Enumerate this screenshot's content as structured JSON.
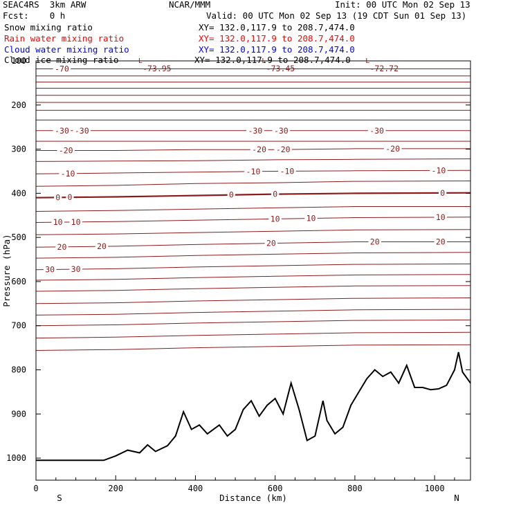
{
  "header": {
    "model": "SEAC4RS  3km ARW",
    "org": "NCAR/MMM",
    "init": "Init: 00 UTC Mon 02 Sep 13",
    "fcst": "Fcst:    0 h",
    "valid": "Valid: 00 UTC Mon 02 Sep 13 (19 CDT Sun 01 Sep 13)"
  },
  "legend": [
    {
      "label": "Snow mixing ratio",
      "xy": "XY= 132.0,117.9 to 208.7,474.0",
      "color": "#000000"
    },
    {
      "label": "Rain water mixing ratio",
      "xy": "XY= 132.0,117.9 to 208.7,474.0",
      "color": "#ff0000"
    },
    {
      "label": "Cloud water mixing ratio",
      "xy": "XY= 132.0,117.9 to 208.7,474.0",
      "color": "#0000ff"
    },
    {
      "label": "Cloud ice mixing ratio",
      "xy": "XY= 132.0,117.9 to 208.7,474.0",
      "color": "#000000"
    }
  ],
  "chart_data": {
    "type": "line",
    "title": "",
    "xlabel": "Distance (km)",
    "ylabel": "Pressure (hPa)",
    "xlim": [
      0,
      1090
    ],
    "ylim": [
      1050,
      100
    ],
    "x_ticks": [
      0,
      200,
      400,
      600,
      800,
      1000
    ],
    "y_ticks": [
      200,
      300,
      400,
      500,
      600,
      700,
      800,
      900,
      1000
    ],
    "y_tick_100_label": "100",
    "direction_labels": {
      "left": "S",
      "right": "N"
    },
    "isotherm_color": "#8b1a1a",
    "isotherm_interval_C": 5,
    "extrema": [
      {
        "text": "L",
        "x": 300
      },
      {
        "text": "-73.95",
        "x": 300
      },
      {
        "text": "L",
        "x": 610
      },
      {
        "text": "-73.45",
        "x": 610
      },
      {
        "text": "L",
        "x": 870
      },
      {
        "text": "-72.72",
        "x": 870
      }
    ],
    "isotherms": [
      {
        "t": -70,
        "p": [
          [
            0,
            118
          ],
          [
            1090,
            118
          ]
        ]
      },
      {
        "t": -65,
        "p": [
          [
            0,
            134
          ],
          [
            1090,
            134
          ]
        ]
      },
      {
        "t": -60,
        "p": [
          [
            0,
            148
          ],
          [
            1090,
            148
          ]
        ]
      },
      {
        "t": -55,
        "p": [
          [
            0,
            162
          ],
          [
            1090,
            162
          ]
        ]
      },
      {
        "t": -50,
        "p": [
          [
            0,
            178
          ],
          [
            1090,
            178
          ]
        ]
      },
      {
        "t": -45,
        "p": [
          [
            0,
            194
          ],
          [
            1090,
            194
          ]
        ]
      },
      {
        "t": -40,
        "p": [
          [
            0,
            212
          ],
          [
            1090,
            212
          ]
        ]
      },
      {
        "t": -35,
        "p": [
          [
            0,
            234
          ],
          [
            1090,
            234
          ]
        ]
      },
      {
        "t": -30,
        "p": [
          [
            0,
            258
          ],
          [
            1090,
            258
          ]
        ]
      },
      {
        "t": -25,
        "p": [
          [
            0,
            282
          ],
          [
            1090,
            282
          ]
        ]
      },
      {
        "t": -20,
        "p": [
          [
            0,
            303
          ],
          [
            200,
            303
          ],
          [
            400,
            301
          ],
          [
            600,
            301
          ],
          [
            800,
            299
          ],
          [
            1090,
            299
          ]
        ]
      },
      {
        "t": -15,
        "p": [
          [
            0,
            328
          ],
          [
            200,
            327
          ],
          [
            400,
            326
          ],
          [
            600,
            324
          ],
          [
            800,
            323
          ],
          [
            1090,
            322
          ]
        ]
      },
      {
        "t": -10,
        "p": [
          [
            0,
            356
          ],
          [
            200,
            354
          ],
          [
            400,
            352
          ],
          [
            600,
            350
          ],
          [
            800,
            349
          ],
          [
            1090,
            348
          ]
        ]
      },
      {
        "t": -5,
        "p": [
          [
            0,
            384
          ],
          [
            200,
            382
          ],
          [
            400,
            378
          ],
          [
            600,
            376
          ],
          [
            800,
            373
          ],
          [
            1090,
            372
          ]
        ]
      },
      {
        "t": 0,
        "p": [
          [
            0,
            410
          ],
          [
            200,
            408
          ],
          [
            400,
            405
          ],
          [
            600,
            402
          ],
          [
            800,
            400
          ],
          [
            1090,
            399
          ]
        ]
      },
      {
        "t": 5,
        "p": [
          [
            0,
            441
          ],
          [
            200,
            439
          ],
          [
            400,
            436
          ],
          [
            600,
            433
          ],
          [
            800,
            430
          ],
          [
            1090,
            430
          ]
        ]
      },
      {
        "t": 10,
        "p": [
          [
            0,
            466
          ],
          [
            200,
            464
          ],
          [
            400,
            461
          ],
          [
            600,
            458
          ],
          [
            800,
            455
          ],
          [
            1090,
            454
          ]
        ]
      },
      {
        "t": 15,
        "p": [
          [
            0,
            494
          ],
          [
            200,
            492
          ],
          [
            400,
            489
          ],
          [
            600,
            486
          ],
          [
            800,
            483
          ],
          [
            1090,
            482
          ]
        ]
      },
      {
        "t": 20,
        "p": [
          [
            0,
            522
          ],
          [
            200,
            520
          ],
          [
            400,
            516
          ],
          [
            600,
            513
          ],
          [
            800,
            510
          ],
          [
            1090,
            510
          ]
        ]
      },
      {
        "t": 25,
        "p": [
          [
            0,
            547
          ],
          [
            200,
            545
          ],
          [
            400,
            541
          ],
          [
            600,
            538
          ],
          [
            800,
            535
          ],
          [
            1090,
            534
          ]
        ]
      },
      {
        "t": 30,
        "p": [
          [
            0,
            573
          ],
          [
            200,
            571
          ],
          [
            400,
            567
          ],
          [
            600,
            564
          ],
          [
            800,
            561
          ],
          [
            1090,
            560
          ]
        ]
      },
      {
        "t": 35,
        "p": [
          [
            0,
            597
          ],
          [
            200,
            595
          ],
          [
            400,
            591
          ],
          [
            600,
            588
          ],
          [
            800,
            585
          ],
          [
            1090,
            584
          ]
        ]
      },
      {
        "t": 40,
        "p": [
          [
            0,
            622
          ],
          [
            200,
            620
          ],
          [
            400,
            616
          ],
          [
            600,
            613
          ],
          [
            800,
            610
          ],
          [
            1090,
            609
          ]
        ]
      },
      {
        "t": 45,
        "p": [
          [
            0,
            650
          ],
          [
            200,
            648
          ],
          [
            400,
            644
          ],
          [
            600,
            641
          ],
          [
            800,
            638
          ],
          [
            1090,
            637
          ]
        ]
      },
      {
        "t": 50,
        "p": [
          [
            0,
            676
          ],
          [
            200,
            674
          ],
          [
            400,
            670
          ],
          [
            600,
            667
          ],
          [
            800,
            664
          ],
          [
            1090,
            663
          ]
        ]
      },
      {
        "t": 55,
        "p": [
          [
            0,
            700
          ],
          [
            200,
            698
          ],
          [
            400,
            694
          ],
          [
            600,
            691
          ],
          [
            800,
            688
          ],
          [
            1090,
            687
          ]
        ]
      },
      {
        "t": 60,
        "p": [
          [
            0,
            728
          ],
          [
            200,
            726
          ],
          [
            400,
            722
          ],
          [
            600,
            719
          ],
          [
            800,
            716
          ],
          [
            1090,
            715
          ]
        ]
      },
      {
        "t": 65,
        "p": [
          [
            0,
            756
          ],
          [
            200,
            754
          ],
          [
            400,
            750
          ],
          [
            600,
            747
          ],
          [
            800,
            744
          ],
          [
            1090,
            743
          ]
        ]
      }
    ],
    "terrain": [
      [
        0,
        1005
      ],
      [
        170,
        1005
      ],
      [
        200,
        995
      ],
      [
        230,
        982
      ],
      [
        260,
        988
      ],
      [
        280,
        970
      ],
      [
        300,
        985
      ],
      [
        330,
        972
      ],
      [
        350,
        950
      ],
      [
        370,
        895
      ],
      [
        390,
        935
      ],
      [
        410,
        925
      ],
      [
        430,
        945
      ],
      [
        460,
        925
      ],
      [
        480,
        950
      ],
      [
        500,
        935
      ],
      [
        520,
        890
      ],
      [
        540,
        870
      ],
      [
        560,
        905
      ],
      [
        580,
        880
      ],
      [
        600,
        865
      ],
      [
        620,
        900
      ],
      [
        640,
        830
      ],
      [
        660,
        890
      ],
      [
        680,
        960
      ],
      [
        700,
        950
      ],
      [
        720,
        870
      ],
      [
        730,
        915
      ],
      [
        750,
        945
      ],
      [
        770,
        930
      ],
      [
        790,
        880
      ],
      [
        810,
        850
      ],
      [
        830,
        820
      ],
      [
        850,
        800
      ],
      [
        870,
        815
      ],
      [
        890,
        805
      ],
      [
        910,
        830
      ],
      [
        930,
        790
      ],
      [
        950,
        840
      ],
      [
        970,
        840
      ],
      [
        990,
        845
      ],
      [
        1010,
        843
      ],
      [
        1030,
        835
      ],
      [
        1050,
        800
      ],
      [
        1060,
        760
      ],
      [
        1070,
        805
      ],
      [
        1090,
        830
      ]
    ],
    "isotherm_labels": [
      {
        "text": "-70",
        "t": -70,
        "x": 65
      },
      {
        "text": "-30",
        "t": -30,
        "x": 65
      },
      {
        "text": "-30",
        "t": -30,
        "x": 115
      },
      {
        "text": "-30",
        "t": -30,
        "x": 550
      },
      {
        "text": "-30",
        "t": -30,
        "x": 615
      },
      {
        "text": "-30",
        "t": -30,
        "x": 855
      },
      {
        "text": "-20",
        "t": -20,
        "x": 75
      },
      {
        "text": "-20",
        "t": -20,
        "x": 560
      },
      {
        "text": "-20",
        "t": -20,
        "x": 620
      },
      {
        "text": "-20",
        "t": -20,
        "x": 895
      },
      {
        "text": "-10",
        "t": -10,
        "x": 80
      },
      {
        "text": "-10",
        "t": -10,
        "x": 545
      },
      {
        "text": "-10",
        "t": -10,
        "x": 630
      },
      {
        "text": "-10",
        "t": -10,
        "x": 1010
      },
      {
        "text": "0",
        "t": 0,
        "x": 55
      },
      {
        "text": "0",
        "t": 0,
        "x": 85
      },
      {
        "text": "0",
        "t": 0,
        "x": 490
      },
      {
        "text": "0",
        "t": 0,
        "x": 600
      },
      {
        "text": "0",
        "t": 0,
        "x": 1020
      },
      {
        "text": "10",
        "t": 10,
        "x": 55
      },
      {
        "text": "10",
        "t": 10,
        "x": 100
      },
      {
        "text": "10",
        "t": 10,
        "x": 600
      },
      {
        "text": "10",
        "t": 10,
        "x": 690
      },
      {
        "text": "10",
        "t": 10,
        "x": 1015
      },
      {
        "text": "20",
        "t": 20,
        "x": 65
      },
      {
        "text": "20",
        "t": 20,
        "x": 165
      },
      {
        "text": "20",
        "t": 20,
        "x": 590
      },
      {
        "text": "20",
        "t": 20,
        "x": 850
      },
      {
        "text": "20",
        "t": 20,
        "x": 1015
      },
      {
        "text": "30",
        "t": 30,
        "x": 35
      },
      {
        "text": "30",
        "t": 30,
        "x": 100
      }
    ]
  }
}
